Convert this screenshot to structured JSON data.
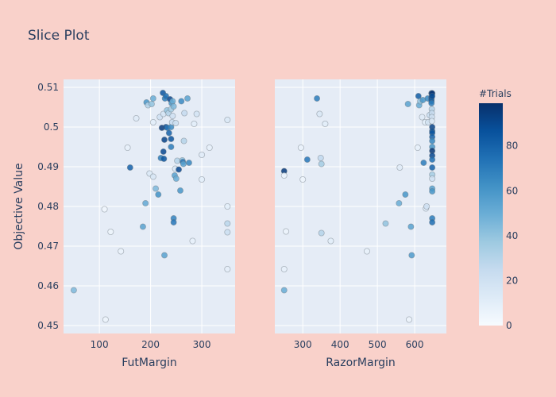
{
  "chart_data": {
    "type": "scatter",
    "title": "Slice Plot",
    "ylabel": "Objective Value",
    "ylim": [
      0.448,
      0.512
    ],
    "yticks": [
      0.45,
      0.46,
      0.47,
      0.48,
      0.49,
      0.5,
      0.51
    ],
    "ytick_labels": [
      "0.45",
      "0.46",
      "0.47",
      "0.48",
      "0.49",
      "0.5",
      "0.51"
    ],
    "grid": true,
    "colorbar": {
      "title": "#Trials",
      "range": [
        0,
        99
      ],
      "ticks": [
        0,
        20,
        40,
        60,
        80
      ],
      "tick_labels": [
        "0",
        "20",
        "40",
        "60",
        "80"
      ],
      "colors": [
        "#f7fbff",
        "#deebf7",
        "#c6dbef",
        "#9ecae1",
        "#6baed6",
        "#4292c6",
        "#2171b5",
        "#08519c",
        "#08306b"
      ]
    },
    "panels": [
      {
        "xlabel": "FutMargin",
        "xlim": [
          30,
          365
        ],
        "xticks": [
          100,
          200,
          300
        ],
        "xtick_labels": [
          "100",
          "200",
          "300"
        ],
        "points": [
          [
            50,
            0.4589,
            45
          ],
          [
            112,
            0.4515,
            5
          ],
          [
            110,
            0.4793,
            3
          ],
          [
            122,
            0.4736,
            4
          ],
          [
            142,
            0.4687,
            6
          ],
          [
            155,
            0.4948,
            8
          ],
          [
            160,
            0.4898,
            80
          ],
          [
            172,
            0.5022,
            12
          ],
          [
            185,
            0.4749,
            55
          ],
          [
            190,
            0.4808,
            52
          ],
          [
            192,
            0.5062,
            60
          ],
          [
            195,
            0.5055,
            30
          ],
          [
            198,
            0.4883,
            14
          ],
          [
            202,
            0.5058,
            40
          ],
          [
            205,
            0.5072,
            50
          ],
          [
            205,
            0.5012,
            10
          ],
          [
            205,
            0.4875,
            16
          ],
          [
            210,
            0.4845,
            45
          ],
          [
            215,
            0.483,
            62
          ],
          [
            218,
            0.5025,
            20
          ],
          [
            220,
            0.4922,
            70
          ],
          [
            222,
            0.4998,
            95
          ],
          [
            224,
            0.5086,
            85
          ],
          [
            225,
            0.5033,
            18
          ],
          [
            225,
            0.4938,
            90
          ],
          [
            226,
            0.492,
            85
          ],
          [
            227,
            0.4968,
            92
          ],
          [
            227,
            0.4677,
            55
          ],
          [
            228,
            0.5072,
            70
          ],
          [
            230,
            0.5,
            88
          ],
          [
            230,
            0.5078,
            75
          ],
          [
            232,
            0.5042,
            40
          ],
          [
            233,
            0.4998,
            72
          ],
          [
            235,
            0.5035,
            30
          ],
          [
            236,
            0.4985,
            80
          ],
          [
            238,
            0.507,
            90
          ],
          [
            240,
            0.5045,
            35
          ],
          [
            240,
            0.5,
            65
          ],
          [
            240,
            0.497,
            86
          ],
          [
            240,
            0.495,
            70
          ],
          [
            241,
            0.506,
            60
          ],
          [
            242,
            0.5012,
            25
          ],
          [
            243,
            0.5065,
            50
          ],
          [
            243,
            0.5028,
            20
          ],
          [
            245,
            0.477,
            68
          ],
          [
            245,
            0.476,
            72
          ],
          [
            245,
            0.5052,
            45
          ],
          [
            247,
            0.4878,
            55
          ],
          [
            248,
            0.4895,
            15
          ],
          [
            249,
            0.501,
            22
          ],
          [
            250,
            0.487,
            50
          ],
          [
            252,
            0.4915,
            30
          ],
          [
            255,
            0.4893,
            90
          ],
          [
            258,
            0.484,
            60
          ],
          [
            260,
            0.5065,
            65
          ],
          [
            262,
            0.4916,
            40
          ],
          [
            263,
            0.4912,
            72
          ],
          [
            264,
            0.4907,
            55
          ],
          [
            265,
            0.4965,
            30
          ],
          [
            266,
            0.5035,
            25
          ],
          [
            272,
            0.5072,
            55
          ],
          [
            275,
            0.491,
            66
          ],
          [
            282,
            0.4713,
            8
          ],
          [
            285,
            0.5008,
            10
          ],
          [
            290,
            0.5033,
            18
          ],
          [
            300,
            0.493,
            12
          ],
          [
            300,
            0.4868,
            10
          ],
          [
            315,
            0.4948,
            8
          ],
          [
            350,
            0.5018,
            14
          ],
          [
            350,
            0.48,
            10
          ],
          [
            350,
            0.4757,
            28
          ],
          [
            350,
            0.4735,
            22
          ],
          [
            350,
            0.4642,
            9
          ]
        ]
      },
      {
        "xlabel": "RazorMargin",
        "xlim": [
          225,
          685
        ],
        "xticks": [
          300,
          400,
          500,
          600
        ],
        "xtick_labels": [
          "300",
          "400",
          "500",
          "600"
        ],
        "points": [
          [
            250,
            0.4889,
            95
          ],
          [
            250,
            0.4878,
            6
          ],
          [
            250,
            0.4642,
            8
          ],
          [
            250,
            0.4589,
            50
          ],
          [
            255,
            0.4737,
            5
          ],
          [
            295,
            0.4948,
            6
          ],
          [
            300,
            0.4868,
            5
          ],
          [
            312,
            0.4918,
            72
          ],
          [
            338,
            0.5072,
            70
          ],
          [
            345,
            0.5033,
            15
          ],
          [
            348,
            0.4922,
            26
          ],
          [
            350,
            0.4907,
            35
          ],
          [
            350,
            0.4733,
            30
          ],
          [
            360,
            0.5008,
            10
          ],
          [
            375,
            0.4713,
            10
          ],
          [
            472,
            0.4687,
            7
          ],
          [
            522,
            0.4757,
            40
          ],
          [
            558,
            0.4808,
            50
          ],
          [
            560,
            0.4898,
            12
          ],
          [
            575,
            0.483,
            60
          ],
          [
            582,
            0.5058,
            55
          ],
          [
            585,
            0.4515,
            5
          ],
          [
            590,
            0.4749,
            55
          ],
          [
            592,
            0.4677,
            58
          ],
          [
            608,
            0.4948,
            8
          ],
          [
            610,
            0.5078,
            82
          ],
          [
            612,
            0.5055,
            50
          ],
          [
            615,
            0.5065,
            40
          ],
          [
            620,
            0.5025,
            12
          ],
          [
            622,
            0.5068,
            60
          ],
          [
            624,
            0.491,
            70
          ],
          [
            628,
            0.5012,
            10
          ],
          [
            630,
            0.4795,
            12
          ],
          [
            632,
            0.48,
            20
          ],
          [
            635,
            0.5072,
            65
          ],
          [
            636,
            0.5012,
            18
          ],
          [
            640,
            0.503,
            22
          ],
          [
            645,
            0.5085,
            95
          ],
          [
            645,
            0.5075,
            90
          ],
          [
            645,
            0.507,
            85
          ],
          [
            645,
            0.5065,
            80
          ],
          [
            645,
            0.506,
            70
          ],
          [
            646,
            0.5045,
            30
          ],
          [
            646,
            0.5035,
            25
          ],
          [
            646,
            0.5025,
            20
          ],
          [
            646,
            0.5015,
            15
          ],
          [
            647,
            0.5,
            92
          ],
          [
            647,
            0.499,
            88
          ],
          [
            647,
            0.4985,
            85
          ],
          [
            647,
            0.4975,
            80
          ],
          [
            647,
            0.4965,
            66
          ],
          [
            647,
            0.495,
            60
          ],
          [
            647,
            0.494,
            96
          ],
          [
            647,
            0.4928,
            90
          ],
          [
            647,
            0.4918,
            75
          ],
          [
            647,
            0.4898,
            80
          ],
          [
            647,
            0.488,
            35
          ],
          [
            647,
            0.487,
            20
          ],
          [
            647,
            0.4845,
            55
          ],
          [
            647,
            0.4838,
            60
          ],
          [
            647,
            0.477,
            70
          ],
          [
            647,
            0.476,
            75
          ],
          [
            647,
            0.5085,
            97
          ],
          [
            647,
            0.5078,
            88
          ]
        ]
      }
    ]
  }
}
